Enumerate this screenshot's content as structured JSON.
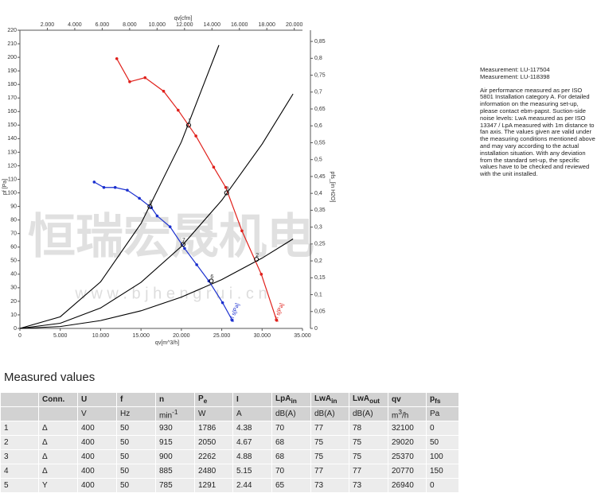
{
  "chart_data": {
    "type": "line",
    "x_label": "qv[m^3/h]",
    "x2_label": "qv[cfm]",
    "y_label": "pf [Pa]",
    "y2_label": "pfs_[in H2O]",
    "xlim": [
      0,
      35000
    ],
    "xticks": [
      {
        "value": 0,
        "label": "0"
      },
      {
        "value": 5000,
        "label": "5.000"
      },
      {
        "value": 10000,
        "label": "10.000"
      },
      {
        "value": 15000,
        "label": "15.000"
      },
      {
        "value": 20000,
        "label": "20.000"
      },
      {
        "value": 25000,
        "label": "25.000"
      },
      {
        "value": 30000,
        "label": "30.000"
      },
      {
        "value": 35000,
        "label": "35.000"
      }
    ],
    "x2lim": [
      0,
      20600
    ],
    "x2ticks": [
      {
        "value": 2000,
        "label": "2.000"
      },
      {
        "value": 4000,
        "label": "4.000"
      },
      {
        "value": 6000,
        "label": "6.000"
      },
      {
        "value": 8000,
        "label": "8.000"
      },
      {
        "value": 10000,
        "label": "10.000"
      },
      {
        "value": 12000,
        "label": "12.000"
      },
      {
        "value": 14000,
        "label": "14.000"
      },
      {
        "value": 16000,
        "label": "16.000"
      },
      {
        "value": 18000,
        "label": "18.000"
      },
      {
        "value": 20000,
        "label": "20.000"
      }
    ],
    "ylim": [
      0,
      220
    ],
    "yticks": [
      0,
      10,
      20,
      30,
      40,
      50,
      60,
      70,
      80,
      90,
      100,
      110,
      120,
      130,
      140,
      150,
      160,
      170,
      180,
      190,
      200,
      210,
      220
    ],
    "y2lim": [
      0,
      0.8832
    ],
    "y2ticks": [
      0,
      {
        "value": 0.05,
        "label": "0,05"
      },
      {
        "value": 0.1,
        "label": "0,1"
      },
      {
        "value": 0.15,
        "label": "0,15"
      },
      {
        "value": 0.2,
        "label": "0,2"
      },
      {
        "value": 0.25,
        "label": "0,25"
      },
      {
        "value": 0.3,
        "label": "0,3"
      },
      {
        "value": 0.35,
        "label": "0,35"
      },
      {
        "value": 0.4,
        "label": "0,4"
      },
      {
        "value": 0.45,
        "label": "0,45"
      },
      {
        "value": 0.5,
        "label": "0,5"
      },
      {
        "value": 0.55,
        "label": "0,55"
      },
      {
        "value": 0.6,
        "label": "0,6"
      },
      {
        "value": 0.65,
        "label": "0,65"
      },
      {
        "value": 0.7,
        "label": "0,7"
      },
      {
        "value": 0.75,
        "label": "0,75"
      },
      {
        "value": 0.8,
        "label": "0,8"
      },
      {
        "value": 0.85,
        "label": "0,85"
      }
    ],
    "series": [
      {
        "name": "pf s[Pa]",
        "color": "#e0201b",
        "x": [
          12000,
          13600,
          15500,
          17800,
          19600,
          21800,
          24000,
          25500,
          27500,
          29900,
          31800
        ],
        "values": [
          199,
          182,
          185,
          175,
          161,
          142,
          119,
          104,
          72,
          40,
          6
        ]
      },
      {
        "name": "pf s[Pa]",
        "color": "#1a2fcf",
        "x": [
          9200,
          10400,
          11800,
          13300,
          14800,
          16300,
          17000,
          18600,
          20400,
          21900,
          23400,
          25100,
          26300
        ],
        "values": [
          108,
          104,
          104,
          102,
          96,
          89,
          83,
          75,
          59,
          47,
          35,
          19,
          6
        ]
      }
    ],
    "system_lines": [
      {
        "color": "#000000",
        "x": [
          0,
          5000,
          10000,
          15000,
          20000,
          24650
        ],
        "values": [
          0,
          8.6,
          34.4,
          77.4,
          137.6,
          209
        ]
      },
      {
        "color": "#000000",
        "x": [
          0,
          5000,
          10000,
          15000,
          20000,
          25000,
          30000,
          33830
        ],
        "values": [
          0,
          3.8,
          15.1,
          34,
          60.5,
          94.5,
          136,
          173
        ]
      },
      {
        "color": "#000000",
        "x": [
          0,
          5000,
          10000,
          15000,
          20000,
          25000,
          30000,
          33830
        ],
        "values": [
          0,
          1.4,
          5.8,
          13,
          23.1,
          36,
          51.9,
          66
        ]
      }
    ],
    "operating_points": [
      {
        "label": "1",
        "x": 20900,
        "y": 150
      },
      {
        "label": "3",
        "x": 25600,
        "y": 100
      },
      {
        "label": "2",
        "x": 29300,
        "y": 51
      },
      {
        "label": "8",
        "x": 16100,
        "y": 90
      },
      {
        "label": "7",
        "x": 20200,
        "y": 62
      },
      {
        "label": "6",
        "x": 23700,
        "y": 35
      }
    ],
    "watermark": [
      "恒瑞宏晟机电",
      "w w w . b j h e n g r u i . c n"
    ]
  },
  "notes": {
    "measurements": [
      "Measurement: LU-117504",
      "Measurement: LU-118398"
    ],
    "text": "Air performance measured as per ISO 5801 Installation category A. For detailed information on the measuring set-up, please contact ebm-papst. Suction-side noise levels: LwA measured as per ISO 13347 / LpA measured with 1m distance to fan axis. The values given are valid under the measuring conditions mentioned above and may vary according to the actual installation situation. With any deviation from the standard set-up, the specific values have to be checked and reviewed with the unit installed."
  },
  "table": {
    "title": "Measured values",
    "header": [
      {
        "text": ""
      },
      {
        "text": "Conn."
      },
      {
        "text": "U"
      },
      {
        "text": "f"
      },
      {
        "text": "n"
      },
      {
        "text": "P",
        "sub": "e"
      },
      {
        "text": "I"
      },
      {
        "text": "LpA",
        "sub": "in"
      },
      {
        "text": "LwA",
        "sub": "in"
      },
      {
        "text": "LwA",
        "sub": "out"
      },
      {
        "text": "qv"
      },
      {
        "text": "p",
        "sub": "fs"
      }
    ],
    "units": [
      {
        "text": ""
      },
      {
        "text": ""
      },
      {
        "text": "V"
      },
      {
        "text": "Hz"
      },
      {
        "text": "min",
        "sup": "-1"
      },
      {
        "text": "W"
      },
      {
        "text": "A"
      },
      {
        "text": "dB(A)"
      },
      {
        "text": "dB(A)"
      },
      {
        "text": "dB(A)"
      },
      {
        "text": "m",
        "sup": "3",
        "tail": "/h"
      },
      {
        "text": "Pa"
      }
    ],
    "rows": [
      [
        1,
        "Δ",
        400,
        50,
        930,
        1786,
        4.38,
        70,
        77,
        78,
        32100,
        0
      ],
      [
        2,
        "Δ",
        400,
        50,
        915,
        2050,
        4.67,
        68,
        75,
        75,
        29020,
        50
      ],
      [
        3,
        "Δ",
        400,
        50,
        900,
        2262,
        4.88,
        68,
        75,
        75,
        25370,
        100
      ],
      [
        4,
        "Δ",
        400,
        50,
        885,
        2480,
        5.15,
        70,
        77,
        77,
        20770,
        150
      ],
      [
        5,
        "Y",
        400,
        50,
        785,
        1291,
        2.44,
        65,
        73,
        73,
        26940,
        0
      ]
    ]
  }
}
